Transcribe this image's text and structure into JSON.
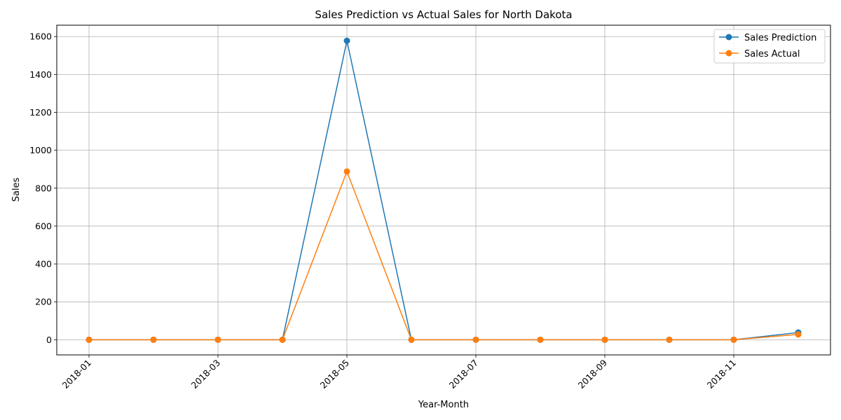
{
  "chart_data": {
    "type": "line",
    "title": "Sales Prediction vs Actual Sales for North Dakota",
    "xlabel": "Year-Month",
    "ylabel": "Sales",
    "x": [
      "2018-01",
      "2018-02",
      "2018-03",
      "2018-04",
      "2018-05",
      "2018-06",
      "2018-07",
      "2018-08",
      "2018-09",
      "2018-10",
      "2018-11",
      "2018-12"
    ],
    "x_ticks": [
      "2018-01",
      "2018-03",
      "2018-05",
      "2018-07",
      "2018-09",
      "2018-11"
    ],
    "y_ticks": [
      0,
      200,
      400,
      600,
      800,
      1000,
      1200,
      1400,
      1600
    ],
    "ylim": [
      -80,
      1660
    ],
    "grid": true,
    "legend_position": "upper right",
    "series": [
      {
        "name": "Sales Prediction",
        "color": "#1f77b4",
        "values": [
          0,
          0,
          0,
          0,
          1578,
          0,
          0,
          0,
          0,
          0,
          0,
          38
        ]
      },
      {
        "name": "Sales Actual",
        "color": "#ff7f0e",
        "values": [
          0,
          0,
          0,
          0,
          888,
          0,
          0,
          0,
          0,
          0,
          0,
          28
        ]
      }
    ]
  }
}
